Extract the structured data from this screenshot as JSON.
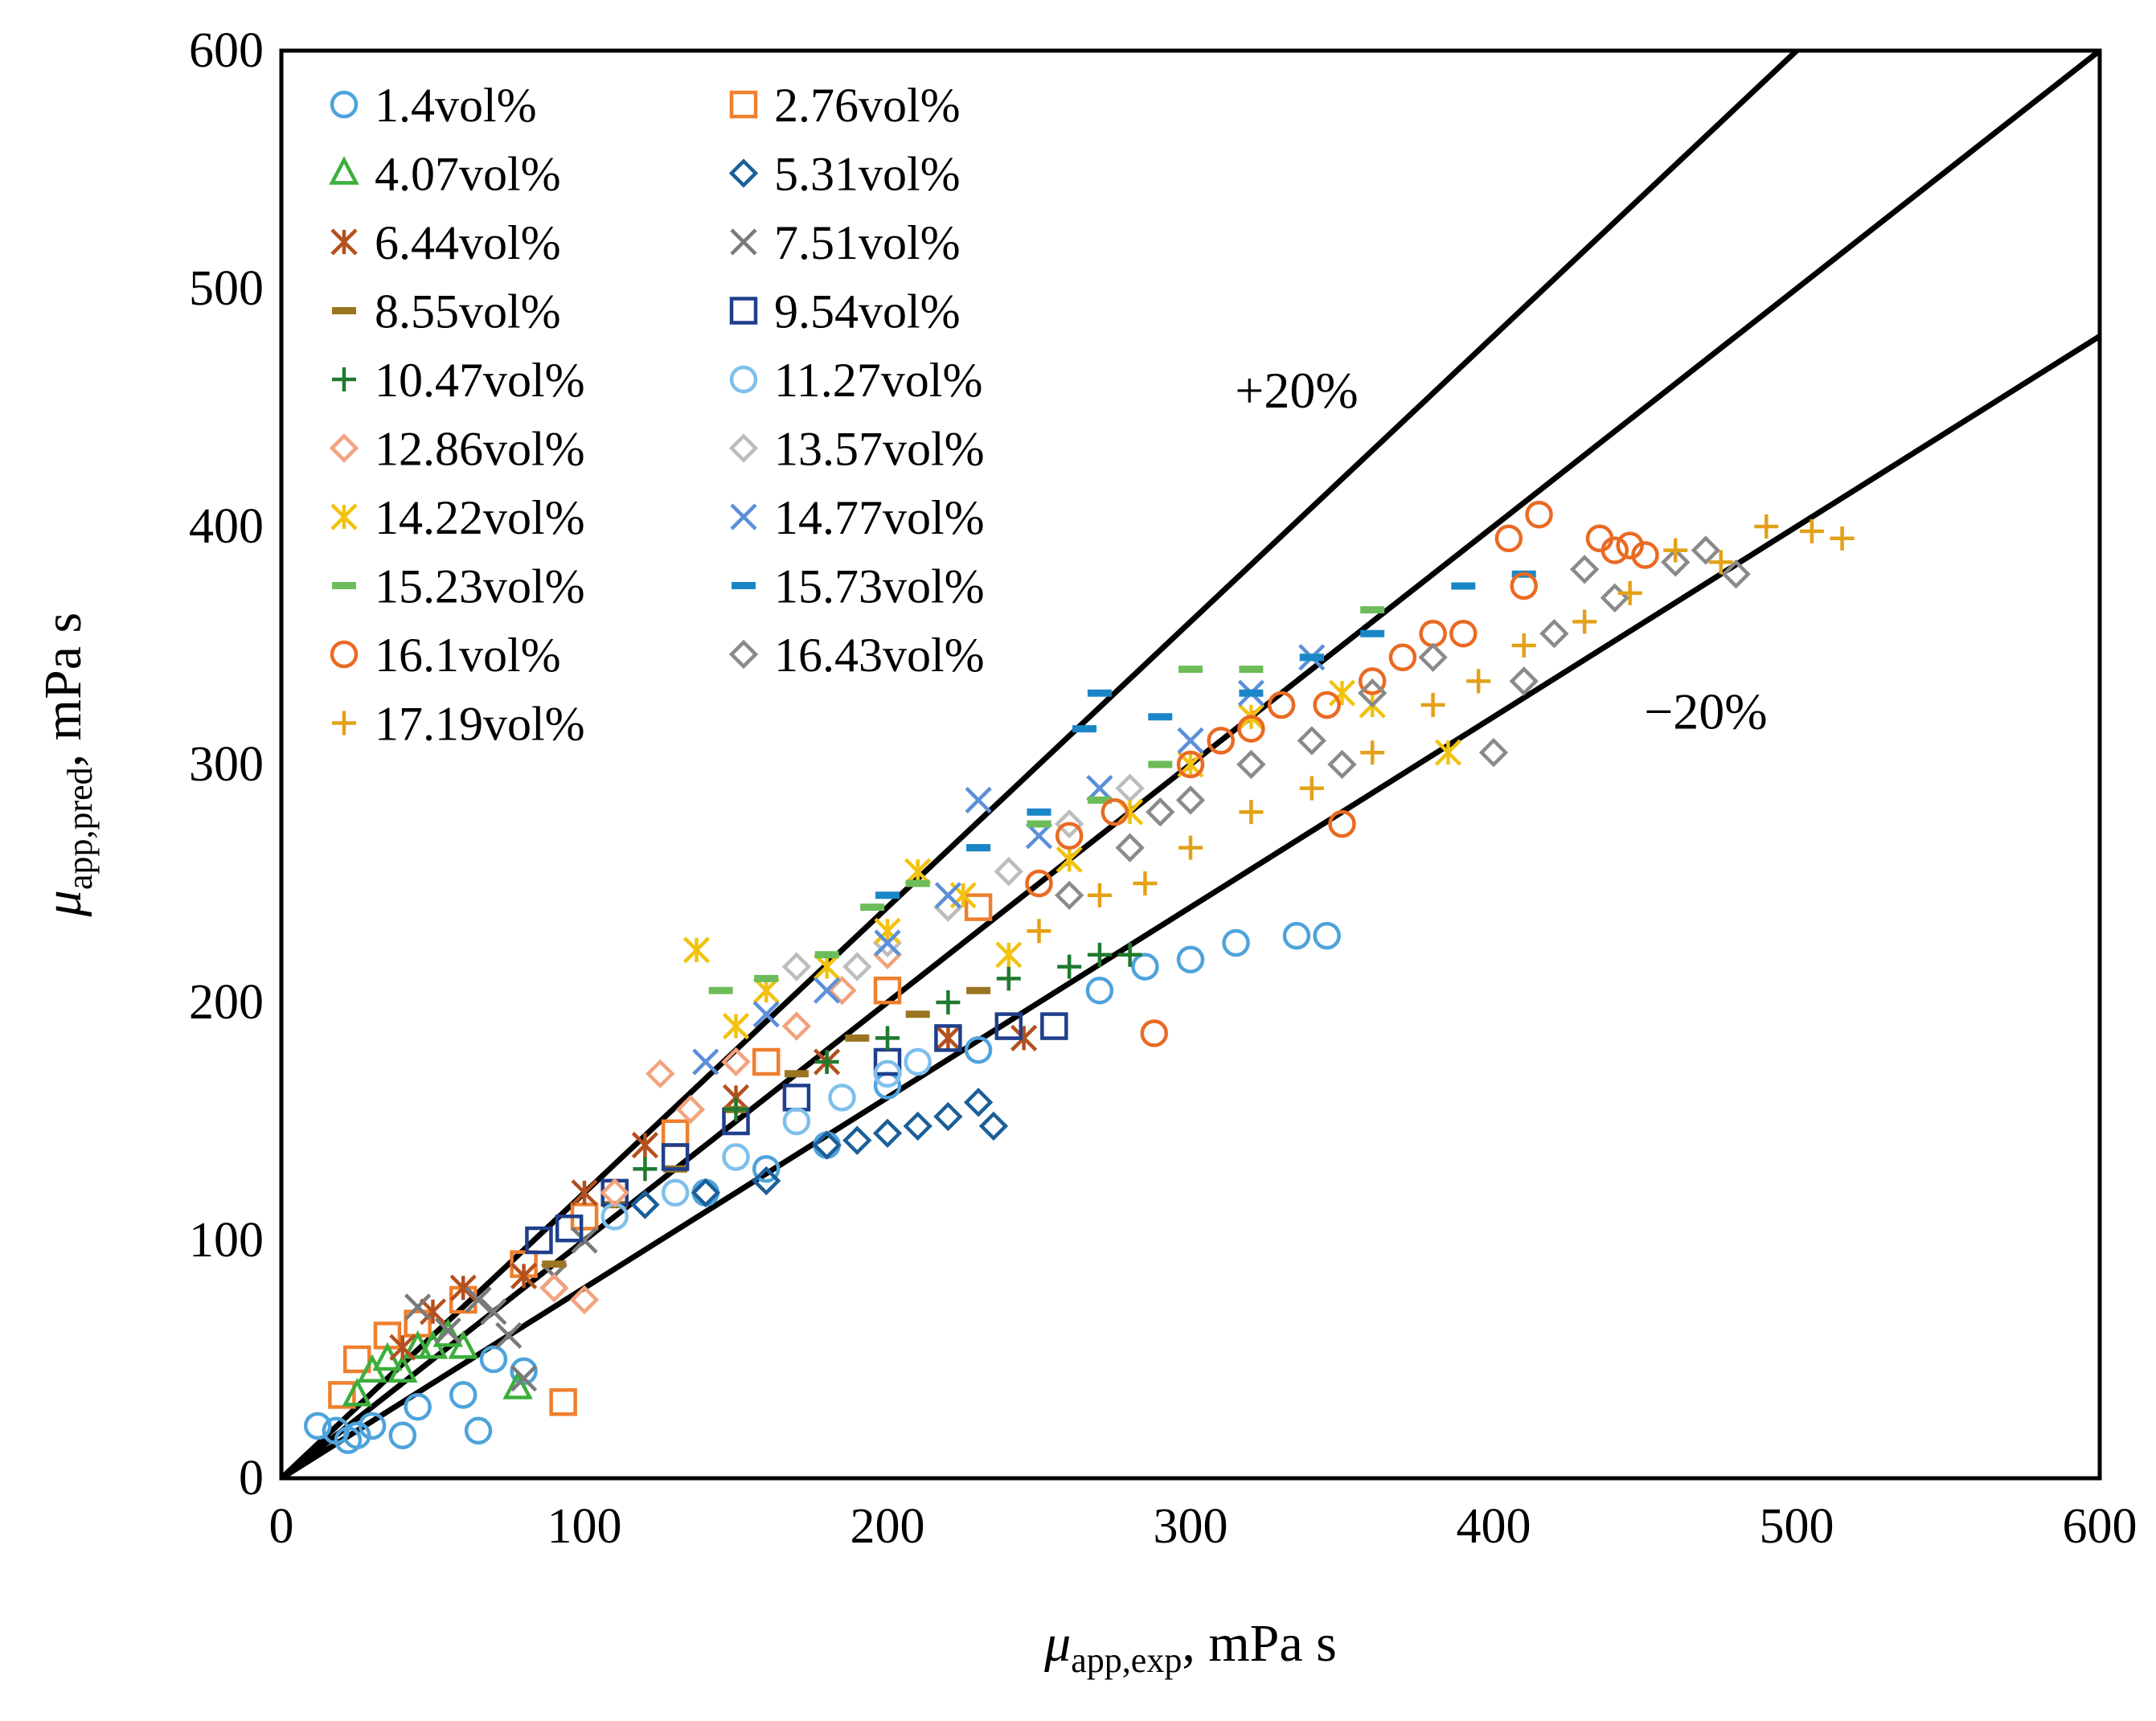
{
  "chart_data": {
    "type": "scatter",
    "title": "",
    "xlabel": {
      "symbol": "μ",
      "subscript": "app,exp",
      "unit": ", mPa s"
    },
    "ylabel": {
      "symbol": "μ",
      "subscript": "app,pred",
      "unit": ", mPa s"
    },
    "xlim": [
      0,
      600
    ],
    "ylim": [
      0,
      600
    ],
    "xticks": [
      0,
      100,
      200,
      300,
      400,
      500,
      600
    ],
    "yticks": [
      0,
      100,
      200,
      300,
      400,
      500,
      600
    ],
    "grid": false,
    "legend_position": "top-left",
    "reference_lines": [
      {
        "name": "+20%",
        "slope": 1.2,
        "label": "+20%",
        "label_at": [
          335,
          450
        ]
      },
      {
        "name": "parity",
        "slope": 1.0
      },
      {
        "name": "−20%",
        "slope": 0.8,
        "label": "−20%",
        "label_at": [
          470,
          315
        ]
      }
    ],
    "series": [
      {
        "name": "1.4vol%",
        "marker": "circle",
        "color": "#4ea3dc",
        "points": [
          [
            12,
            22
          ],
          [
            18,
            20
          ],
          [
            22,
            16
          ],
          [
            25,
            18
          ],
          [
            30,
            22
          ],
          [
            40,
            18
          ],
          [
            45,
            30
          ],
          [
            60,
            35
          ],
          [
            65,
            20
          ],
          [
            70,
            50
          ],
          [
            80,
            45
          ],
          [
            140,
            120
          ],
          [
            160,
            130
          ],
          [
            180,
            140
          ],
          [
            200,
            165
          ],
          [
            230,
            180
          ],
          [
            270,
            205
          ],
          [
            285,
            215
          ],
          [
            300,
            218
          ],
          [
            315,
            225
          ],
          [
            335,
            228
          ],
          [
            345,
            228
          ]
        ]
      },
      {
        "name": "2.76vol%",
        "marker": "square",
        "color": "#ef7f2d",
        "points": [
          [
            20,
            35
          ],
          [
            25,
            50
          ],
          [
            35,
            60
          ],
          [
            45,
            65
          ],
          [
            93,
            32
          ],
          [
            60,
            75
          ],
          [
            80,
            90
          ],
          [
            100,
            110
          ],
          [
            130,
            145
          ],
          [
            160,
            175
          ],
          [
            200,
            205
          ],
          [
            230,
            240
          ]
        ]
      },
      {
        "name": "4.07vol%",
        "marker": "triangle",
        "color": "#3cae3c",
        "points": [
          [
            25,
            35
          ],
          [
            30,
            45
          ],
          [
            35,
            50
          ],
          [
            40,
            45
          ],
          [
            45,
            55
          ],
          [
            50,
            55
          ],
          [
            55,
            60
          ],
          [
            60,
            55
          ],
          [
            78,
            38
          ]
        ]
      },
      {
        "name": "5.31vol%",
        "marker": "diamond",
        "color": "#1b5f99",
        "points": [
          [
            120,
            115
          ],
          [
            140,
            120
          ],
          [
            160,
            125
          ],
          [
            180,
            140
          ],
          [
            190,
            142
          ],
          [
            200,
            145
          ],
          [
            210,
            148
          ],
          [
            220,
            152
          ],
          [
            230,
            158
          ],
          [
            235,
            148
          ]
        ]
      },
      {
        "name": "6.44vol%",
        "marker": "asterisk",
        "color": "#b3501e",
        "points": [
          [
            40,
            55
          ],
          [
            50,
            70
          ],
          [
            60,
            80
          ],
          [
            80,
            85
          ],
          [
            100,
            120
          ],
          [
            120,
            140
          ],
          [
            150,
            160
          ],
          [
            180,
            175
          ],
          [
            220,
            185
          ],
          [
            245,
            185
          ]
        ]
      },
      {
        "name": "7.51vol%",
        "marker": "x",
        "color": "#7a7a7a",
        "points": [
          [
            45,
            72
          ],
          [
            55,
            62
          ],
          [
            65,
            75
          ],
          [
            70,
            70
          ],
          [
            75,
            60
          ],
          [
            80,
            42
          ],
          [
            90,
            85
          ],
          [
            100,
            100
          ]
        ]
      },
      {
        "name": "8.55vol%",
        "marker": "dash",
        "color": "#9a7420",
        "points": [
          [
            90,
            90
          ],
          [
            110,
            115
          ],
          [
            130,
            130
          ],
          [
            150,
            155
          ],
          [
            170,
            170
          ],
          [
            190,
            185
          ],
          [
            210,
            195
          ],
          [
            230,
            205
          ]
        ]
      },
      {
        "name": "9.54vol%",
        "marker": "square",
        "color": "#1f3f8c",
        "points": [
          [
            85,
            100
          ],
          [
            95,
            105
          ],
          [
            110,
            120
          ],
          [
            130,
            135
          ],
          [
            150,
            150
          ],
          [
            170,
            160
          ],
          [
            200,
            175
          ],
          [
            220,
            185
          ],
          [
            240,
            190
          ],
          [
            255,
            190
          ]
        ]
      },
      {
        "name": "10.47vol%",
        "marker": "plus",
        "color": "#1f7a2e",
        "points": [
          [
            120,
            130
          ],
          [
            150,
            155
          ],
          [
            180,
            175
          ],
          [
            200,
            185
          ],
          [
            220,
            200
          ],
          [
            240,
            210
          ],
          [
            260,
            215
          ],
          [
            270,
            220
          ],
          [
            280,
            220
          ]
        ]
      },
      {
        "name": "11.27vol%",
        "marker": "circle",
        "color": "#7ec0eb",
        "points": [
          [
            110,
            110
          ],
          [
            130,
            120
          ],
          [
            150,
            135
          ],
          [
            170,
            150
          ],
          [
            185,
            160
          ],
          [
            200,
            170
          ],
          [
            210,
            175
          ]
        ]
      },
      {
        "name": "12.86vol%",
        "marker": "diamond",
        "color": "#f3a27e",
        "points": [
          [
            90,
            80
          ],
          [
            100,
            75
          ],
          [
            110,
            120
          ],
          [
            125,
            170
          ],
          [
            135,
            155
          ],
          [
            150,
            175
          ],
          [
            170,
            190
          ],
          [
            185,
            205
          ],
          [
            200,
            220
          ],
          [
            220,
            240
          ],
          [
            240,
            255
          ]
        ]
      },
      {
        "name": "13.57vol%",
        "marker": "diamond",
        "color": "#bdbdbd",
        "points": [
          [
            170,
            215
          ],
          [
            190,
            215
          ],
          [
            200,
            225
          ],
          [
            220,
            240
          ],
          [
            240,
            255
          ],
          [
            260,
            275
          ],
          [
            280,
            290
          ]
        ]
      },
      {
        "name": "14.22vol%",
        "marker": "asterisk",
        "color": "#f2c20f",
        "points": [
          [
            137,
            222
          ],
          [
            150,
            190
          ],
          [
            160,
            205
          ],
          [
            180,
            215
          ],
          [
            200,
            230
          ],
          [
            210,
            255
          ],
          [
            225,
            245
          ],
          [
            240,
            220
          ],
          [
            260,
            260
          ],
          [
            280,
            280
          ],
          [
            300,
            300
          ],
          [
            320,
            320
          ],
          [
            350,
            330
          ],
          [
            360,
            325
          ],
          [
            385,
            305
          ]
        ]
      },
      {
        "name": "14.77vol%",
        "marker": "x",
        "color": "#5b8fd9",
        "points": [
          [
            140,
            175
          ],
          [
            160,
            195
          ],
          [
            180,
            205
          ],
          [
            200,
            225
          ],
          [
            220,
            245
          ],
          [
            230,
            285
          ],
          [
            250,
            270
          ],
          [
            270,
            290
          ],
          [
            300,
            310
          ],
          [
            320,
            330
          ],
          [
            340,
            345
          ]
        ]
      },
      {
        "name": "15.23vol%",
        "marker": "dash",
        "color": "#6cbd59",
        "points": [
          [
            145,
            205
          ],
          [
            160,
            210
          ],
          [
            180,
            220
          ],
          [
            195,
            240
          ],
          [
            210,
            250
          ],
          [
            230,
            265
          ],
          [
            250,
            275
          ],
          [
            270,
            285
          ],
          [
            290,
            300
          ],
          [
            300,
            340
          ],
          [
            320,
            340
          ],
          [
            340,
            345
          ],
          [
            360,
            365
          ]
        ]
      },
      {
        "name": "15.73vol%",
        "marker": "dash",
        "color": "#1a86c8",
        "points": [
          [
            200,
            245
          ],
          [
            230,
            265
          ],
          [
            250,
            280
          ],
          [
            265,
            315
          ],
          [
            270,
            330
          ],
          [
            290,
            320
          ],
          [
            320,
            330
          ],
          [
            340,
            345
          ],
          [
            360,
            355
          ],
          [
            390,
            375
          ],
          [
            410,
            380
          ]
        ]
      },
      {
        "name": "16.1vol%",
        "marker": "circle",
        "color": "#ea6a23",
        "points": [
          [
            250,
            250
          ],
          [
            260,
            270
          ],
          [
            275,
            280
          ],
          [
            288,
            187
          ],
          [
            300,
            300
          ],
          [
            310,
            310
          ],
          [
            320,
            315
          ],
          [
            330,
            325
          ],
          [
            345,
            325
          ],
          [
            350,
            275
          ],
          [
            360,
            335
          ],
          [
            370,
            345
          ],
          [
            380,
            355
          ],
          [
            390,
            355
          ],
          [
            405,
            395
          ],
          [
            410,
            375
          ],
          [
            415,
            405
          ],
          [
            435,
            395
          ],
          [
            440,
            390
          ],
          [
            445,
            392
          ],
          [
            450,
            388
          ]
        ]
      },
      {
        "name": "16.43vol%",
        "marker": "diamond",
        "color": "#8a8a8a",
        "points": [
          [
            260,
            245
          ],
          [
            280,
            265
          ],
          [
            290,
            280
          ],
          [
            300,
            285
          ],
          [
            320,
            300
          ],
          [
            340,
            310
          ],
          [
            350,
            300
          ],
          [
            360,
            330
          ],
          [
            380,
            345
          ],
          [
            400,
            305
          ],
          [
            410,
            335
          ],
          [
            420,
            355
          ],
          [
            430,
            382
          ],
          [
            440,
            370
          ],
          [
            460,
            385
          ],
          [
            470,
            390
          ],
          [
            480,
            380
          ]
        ]
      },
      {
        "name": "17.19vol%",
        "marker": "plus",
        "color": "#e3a117",
        "points": [
          [
            250,
            230
          ],
          [
            270,
            245
          ],
          [
            285,
            250
          ],
          [
            300,
            265
          ],
          [
            320,
            280
          ],
          [
            340,
            290
          ],
          [
            360,
            305
          ],
          [
            380,
            325
          ],
          [
            395,
            335
          ],
          [
            410,
            350
          ],
          [
            430,
            360
          ],
          [
            445,
            372
          ],
          [
            460,
            390
          ],
          [
            475,
            385
          ],
          [
            490,
            400
          ],
          [
            505,
            398
          ],
          [
            515,
            395
          ]
        ]
      }
    ]
  }
}
